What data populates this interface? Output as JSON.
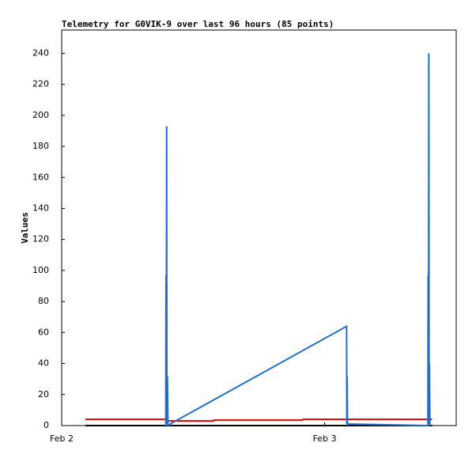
{
  "chart_data": {
    "type": "line",
    "title": "Telemetry for G0VIK-9 over last 96 hours (85 points)",
    "y_label": "Values",
    "xlim": [
      0,
      36
    ],
    "xticks": [
      {
        "value": 0,
        "label": "Feb 2"
      },
      {
        "value": 24,
        "label": "Feb 3"
      }
    ],
    "ylim": [
      0,
      255
    ],
    "yticks": [
      0,
      20,
      40,
      60,
      80,
      100,
      120,
      140,
      160,
      180,
      200,
      220,
      240
    ],
    "grid": false,
    "series": [
      {
        "color": "#e00000",
        "x": [
          2.16,
          9.59,
          9.66,
          13.84,
          13.91,
          21.98,
          22.05,
          33.8
        ],
        "values": [
          4,
          4,
          3,
          3,
          3.5,
          3.5,
          4,
          4
        ]
      },
      {
        "color": "#000000",
        "x": [
          2.16,
          33.8
        ],
        "values": [
          0,
          0
        ]
      },
      {
        "color": "#1f6fc5",
        "x": [
          9.5,
          9.52,
          9.55,
          9.58,
          9.6,
          9.65,
          9.7,
          9.9,
          26.0,
          26.02,
          26.05,
          26.08,
          26.1,
          33.42,
          33.44,
          33.47,
          33.5,
          33.53,
          33.56,
          33.6
        ],
        "values": [
          0,
          97,
          1,
          193,
          2,
          32,
          0,
          1,
          64,
          1,
          32,
          0,
          1,
          0,
          97,
          1,
          240,
          2,
          40,
          0
        ]
      }
    ]
  }
}
